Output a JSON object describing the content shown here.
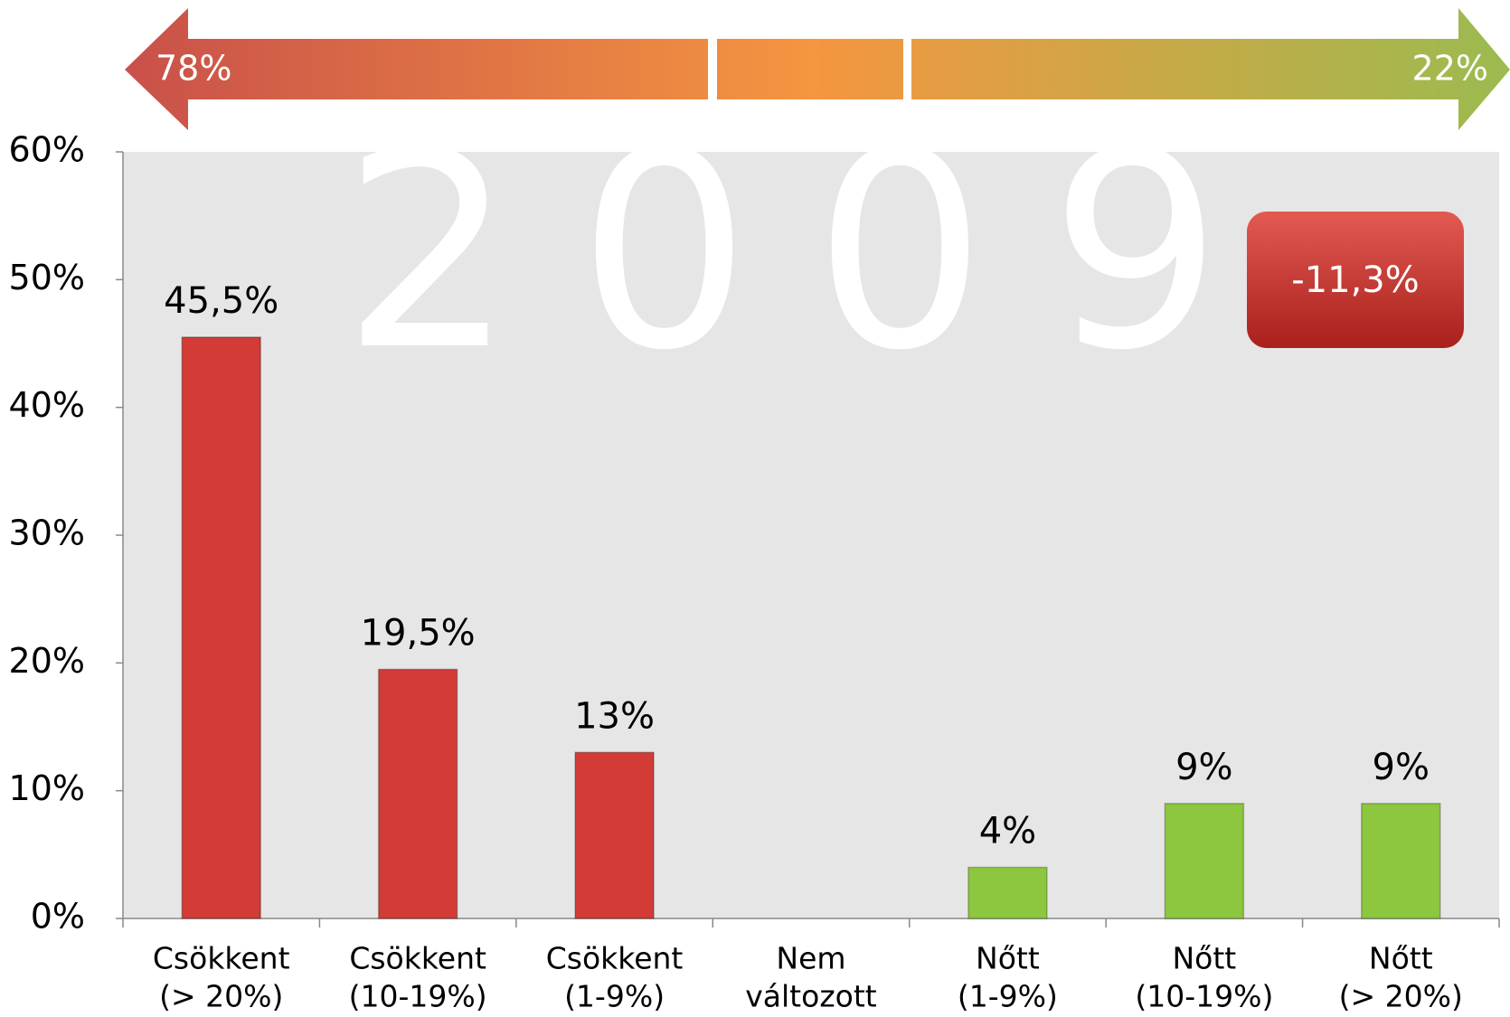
{
  "chart_data": {
    "type": "bar",
    "arrow": {
      "left_label": "78%",
      "right_label": "22%"
    },
    "watermark": "2009",
    "badge": "-11,3%",
    "categories": [
      [
        "Csökkent",
        "(> 20%)"
      ],
      [
        "Csökkent",
        "(10-19%)"
      ],
      [
        "Csökkent",
        "(1-9%)"
      ],
      [
        "Nem",
        "változott"
      ],
      [
        "Nőtt",
        "(1-9%)"
      ],
      [
        "Nőtt",
        "(10-19%)"
      ],
      [
        "Nőtt",
        "(> 20%)"
      ]
    ],
    "values": [
      45.5,
      19.5,
      13,
      0,
      4,
      9,
      9
    ],
    "value_labels": [
      "45,5%",
      "19,5%",
      "13%",
      null,
      "4%",
      "9%",
      "9%"
    ],
    "colors": [
      "#d23b36",
      "#d23b36",
      "#d23b36",
      "#d23b36",
      "#8dc63f",
      "#8dc63f",
      "#8dc63f"
    ],
    "ylim": [
      0,
      60
    ],
    "yticks": [
      {
        "value": 0,
        "label": "0%"
      },
      {
        "value": 10,
        "label": "10%"
      },
      {
        "value": 20,
        "label": "20%"
      },
      {
        "value": 30,
        "label": "30%"
      },
      {
        "value": 40,
        "label": "40%"
      },
      {
        "value": 50,
        "label": "50%"
      },
      {
        "value": 60,
        "label": "60%"
      }
    ]
  }
}
